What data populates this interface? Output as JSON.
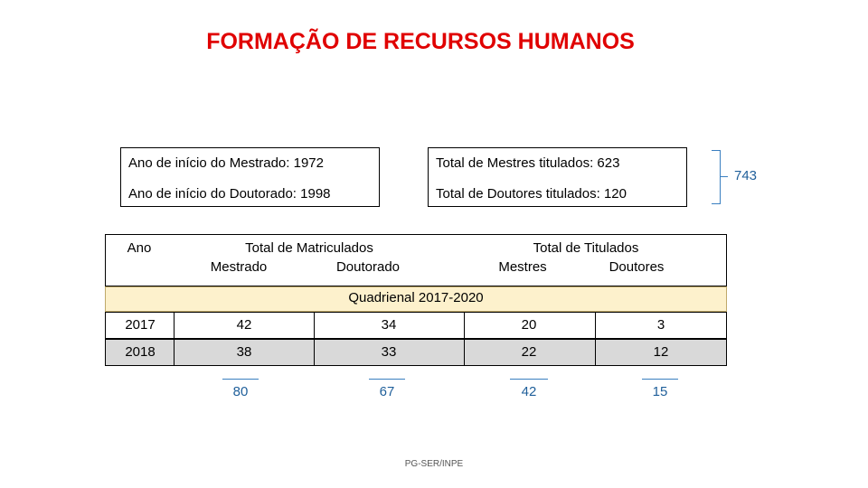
{
  "title": "FORMAÇÃO DE RECURSOS HUMANOS",
  "info": {
    "mestrado_inicio": "Ano de início do Mestrado: 1972",
    "doutorado_inicio": "Ano de início do Doutorado: 1998",
    "mestres_titulados": "Total de Mestres titulados: 623",
    "doutores_titulados": "Total de Doutores titulados: 120",
    "total": "743"
  },
  "table": {
    "col_ano": "Ano",
    "col_matriculados": "Total de Matriculados",
    "sub_mestrado": "Mestrado",
    "sub_doutorado": "Doutorado",
    "col_titulados": "Total de Titulados",
    "sub_mestres": "Mestres",
    "sub_doutores": "Doutores",
    "period": "Quadrienal 2017-2020",
    "rows": [
      {
        "ano": "2017",
        "mat_mestrado": "42",
        "mat_doutorado": "34",
        "tit_mestres": "20",
        "tit_doutores": "3"
      },
      {
        "ano": "2018",
        "mat_mestrado": "38",
        "mat_doutorado": "33",
        "tit_mestres": "22",
        "tit_doutores": "12"
      }
    ],
    "totals": {
      "mat_mestrado": "80",
      "mat_doutorado": "67",
      "tit_mestres": "42",
      "tit_doutores": "15"
    }
  },
  "footer": "PG-SER/INPE",
  "colors": {
    "title": "#e00000",
    "period_bg": "#fdf1cc",
    "alt_row_bg": "#d9d9d9",
    "sum": "#1f5f9a"
  }
}
